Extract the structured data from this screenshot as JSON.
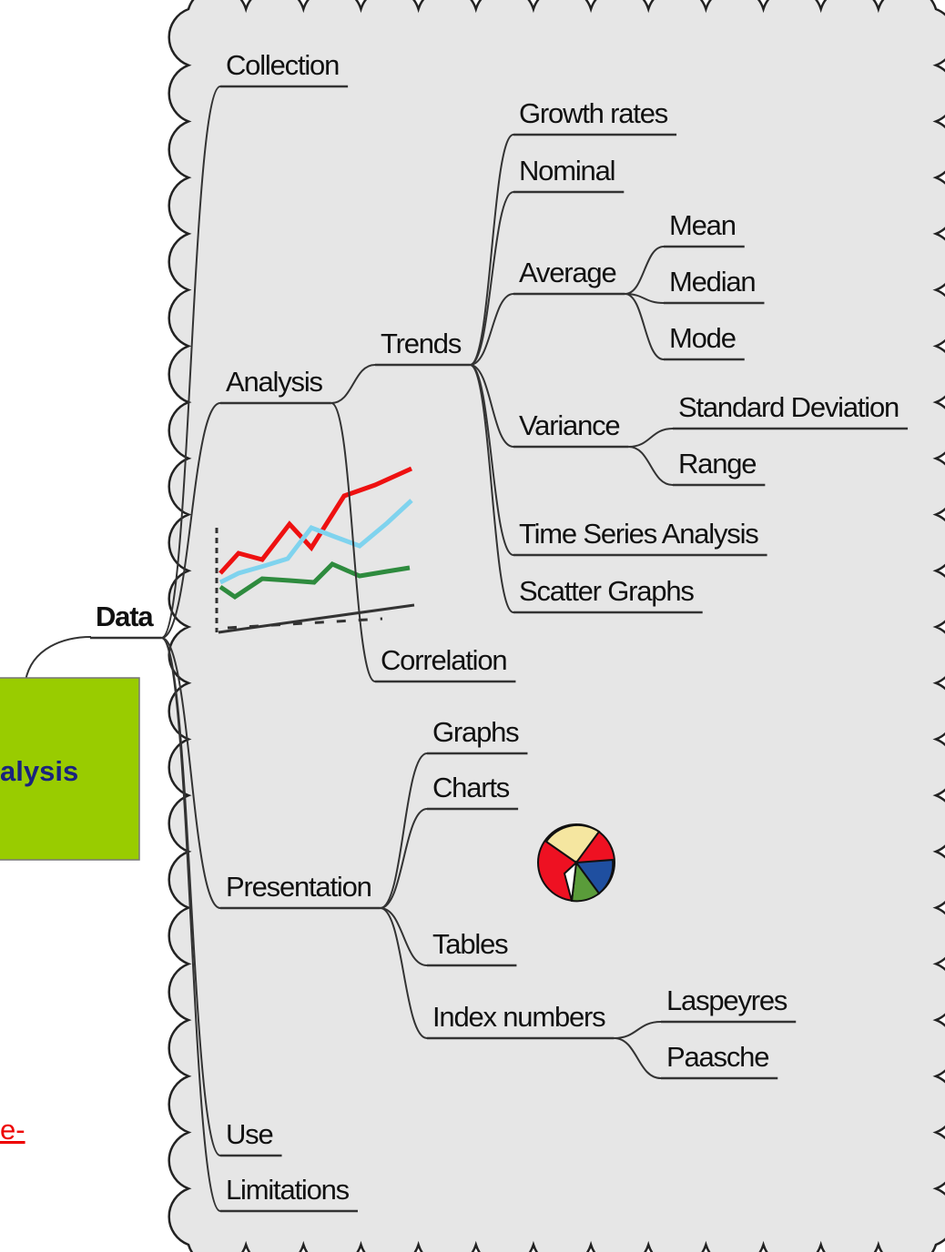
{
  "side_box": {
    "label": "alysis"
  },
  "side_link": {
    "label": "e-"
  },
  "tree": {
    "label": "Data",
    "children": [
      {
        "label": "Collection"
      },
      {
        "label": "Analysis",
        "children": [
          {
            "label": "Trends",
            "children": [
              {
                "label": "Growth rates"
              },
              {
                "label": "Nominal"
              },
              {
                "label": "Average",
                "children": [
                  {
                    "label": "Mean"
                  },
                  {
                    "label": "Median"
                  },
                  {
                    "label": "Mode"
                  }
                ]
              },
              {
                "label": "Variance",
                "children": [
                  {
                    "label": "Standard Deviation"
                  },
                  {
                    "label": "Range"
                  }
                ]
              },
              {
                "label": "Time Series Analysis"
              },
              {
                "label": "Scatter Graphs"
              }
            ]
          },
          {
            "label": "Correlation"
          }
        ]
      },
      {
        "label": "Presentation",
        "children": [
          {
            "label": "Graphs"
          },
          {
            "label": "Charts"
          },
          {
            "label": "Tables"
          },
          {
            "label": "Index numbers",
            "children": [
              {
                "label": "Laspeyres"
              },
              {
                "label": "Paasche"
              }
            ]
          }
        ]
      },
      {
        "label": "Use"
      },
      {
        "label": "Limitations"
      }
    ]
  }
}
